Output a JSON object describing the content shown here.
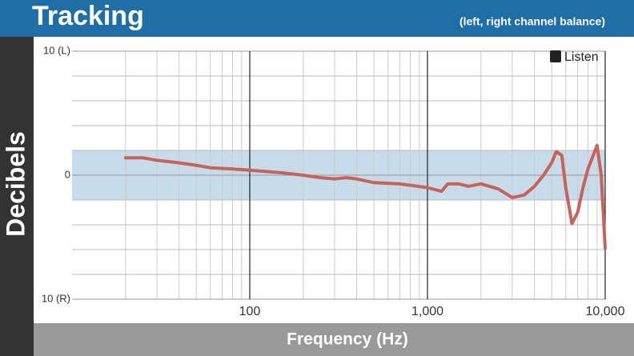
{
  "chart_data": {
    "type": "line",
    "title": "Tracking",
    "subtitle": "(left, right channel balance)",
    "y_label": "Decibels",
    "x_label": "Frequency (Hz)",
    "logo": "Listen",
    "x_log": true,
    "xlim": [
      10,
      10000
    ],
    "xticks": [
      100,
      {
        "value": 1000,
        "label": "1,000"
      },
      {
        "value": 10000,
        "label": "10,000"
      }
    ],
    "xminorticks": [
      20,
      30,
      40,
      50,
      60,
      70,
      80,
      90,
      200,
      300,
      400,
      500,
      600,
      700,
      800,
      900,
      2000,
      3000,
      4000,
      5000,
      6000,
      7000,
      8000,
      9000
    ],
    "ylim": [
      -10,
      10
    ],
    "yticks": [
      {
        "value": 10,
        "label": "10 (L)"
      },
      0,
      {
        "value": -10,
        "label": "10 (R)"
      }
    ],
    "yminorticks": [
      8,
      6,
      4,
      2,
      -2,
      -4,
      -6,
      -8
    ],
    "band": [
      -2,
      2
    ],
    "band_color": "#c6dcea",
    "grid": true,
    "series": [
      {
        "color": "#c8635c",
        "x": [
          20,
          25,
          30,
          40,
          50,
          60,
          80,
          100,
          150,
          200,
          250,
          300,
          350,
          400,
          500,
          700,
          1000,
          1200,
          1300,
          1500,
          1700,
          2000,
          2500,
          3000,
          3500,
          4000,
          4500,
          5000,
          5300,
          5700,
          6000,
          6500,
          7000,
          7500,
          8000,
          9000,
          9500,
          10000
        ],
        "values": [
          1.4,
          1.4,
          1.2,
          1.0,
          0.8,
          0.6,
          0.5,
          0.4,
          0.2,
          0.0,
          -0.2,
          -0.3,
          -0.2,
          -0.3,
          -0.6,
          -0.7,
          -1.0,
          -1.3,
          -0.7,
          -0.7,
          -0.9,
          -0.7,
          -1.1,
          -1.8,
          -1.6,
          -0.9,
          0.0,
          1.0,
          1.9,
          1.6,
          -1.0,
          -3.9,
          -3.0,
          -1.0,
          0.5,
          2.4,
          0.0,
          -5.9
        ]
      }
    ]
  }
}
